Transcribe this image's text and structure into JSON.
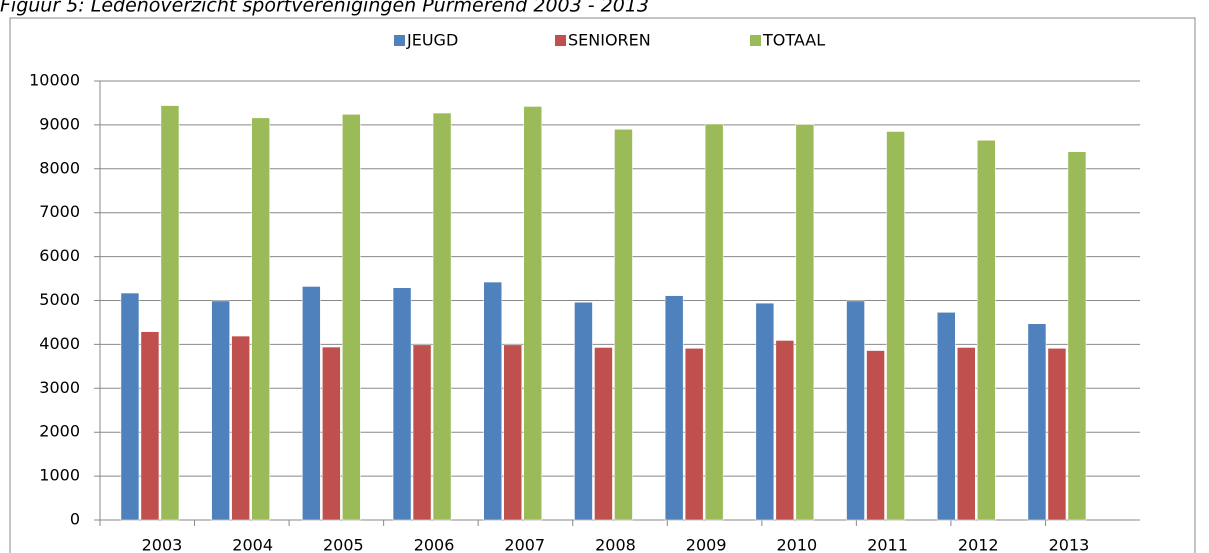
{
  "chart_data": {
    "type": "bar",
    "title": "Figuur 5: Ledenoverzicht sportverenigingen Purmerend 2003 - 2013",
    "categories": [
      "2003",
      "2004",
      "2005",
      "2006",
      "2007",
      "2008",
      "2009",
      "2010",
      "2011",
      "2012",
      "2013"
    ],
    "series": [
      {
        "name": "JEUGD",
        "color": "#4f81bd",
        "values": [
          5170,
          4990,
          5320,
          5290,
          5420,
          4960,
          5110,
          4940,
          4990,
          4730,
          4470
        ]
      },
      {
        "name": "SENIOREN",
        "color": "#c0504d",
        "values": [
          4290,
          4190,
          3940,
          3990,
          3990,
          3930,
          3910,
          4090,
          3860,
          3930,
          3910
        ]
      },
      {
        "name": "TOTAAL",
        "color": "#9bbb59",
        "values": [
          9440,
          9160,
          9240,
          9270,
          9420,
          8900,
          9020,
          9010,
          8850,
          8650,
          8390
        ]
      }
    ],
    "ylim": [
      0,
      10000
    ],
    "yticks": [
      0,
      1000,
      2000,
      3000,
      4000,
      5000,
      6000,
      7000,
      8000,
      9000,
      10000
    ],
    "grid": true,
    "legend": "top"
  }
}
